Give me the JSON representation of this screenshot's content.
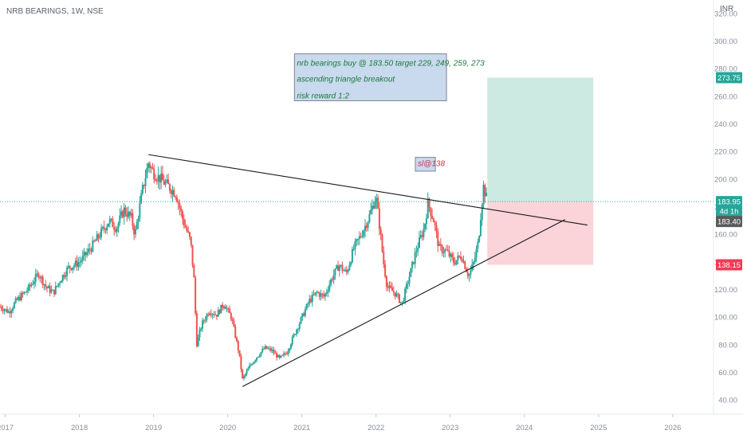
{
  "header": {
    "title": "NRB BEARINGS, 1W, NSE",
    "currency": "INR"
  },
  "colors": {
    "up": "#26a69a",
    "down": "#ef5350",
    "target_zone": "#cdeae2",
    "stop_zone": "#fad4d8",
    "last_price_line": "#26a69a",
    "trendline": "#1a1a1a",
    "note_bg": "#c9d9ee",
    "note_border": "#7b8594",
    "tag_target": "#26a69a",
    "tag_price": "#26a69a",
    "tag_entry": "#5a5a5a",
    "tag_stop": "#ef3b55"
  },
  "notes": {
    "line1": "nrb bearings buy @ 183.50 target 229, 249, 259, 273",
    "line2": "ascending triangle breakout",
    "line3": "risk reward 1:2",
    "stop": "sl@138"
  },
  "price_tags": {
    "target": "273.75",
    "last": "183.95",
    "countdown": "4d 1h",
    "entry": "183.40",
    "stop": "138.15"
  },
  "chart_data": {
    "type": "line",
    "title": "NRB BEARINGS, 1W, NSE",
    "xlabel": "",
    "ylabel": "INR",
    "ylim": [
      30,
      330
    ],
    "xlim": [
      2016.93,
      2026.55
    ],
    "y_ticks": [
      "40.00",
      "60.00",
      "80.00",
      "100.00",
      "120.00",
      "140.00",
      "160.00",
      "180.00",
      "200.00",
      "220.00",
      "240.00",
      "260.00",
      "280.00",
      "300.00",
      "320.00"
    ],
    "x_ticks": [
      {
        "label": "2017",
        "x": 2017.0
      },
      {
        "label": "2018",
        "x": 2018.0
      },
      {
        "label": "2019",
        "x": 2019.0
      },
      {
        "label": "2020",
        "x": 2020.0
      },
      {
        "label": "2021",
        "x": 2021.0
      },
      {
        "label": "2022",
        "x": 2022.0
      },
      {
        "label": "2023",
        "x": 2023.0
      },
      {
        "label": "2024",
        "x": 2024.0
      },
      {
        "label": "2025",
        "x": 2025.0
      },
      {
        "label": "2026",
        "x": 2026.0
      }
    ],
    "price_path": [
      [
        2016.93,
        108
      ],
      [
        2017.05,
        104
      ],
      [
        2017.15,
        112
      ],
      [
        2017.3,
        120
      ],
      [
        2017.45,
        132
      ],
      [
        2017.55,
        122
      ],
      [
        2017.65,
        118
      ],
      [
        2017.75,
        128
      ],
      [
        2017.85,
        136
      ],
      [
        2018.0,
        140
      ],
      [
        2018.15,
        150
      ],
      [
        2018.3,
        162
      ],
      [
        2018.4,
        170
      ],
      [
        2018.5,
        165
      ],
      [
        2018.6,
        178
      ],
      [
        2018.7,
        172
      ],
      [
        2018.75,
        160
      ],
      [
        2018.85,
        192
      ],
      [
        2018.93,
        212
      ],
      [
        2019.0,
        205
      ],
      [
        2019.1,
        200
      ],
      [
        2019.2,
        195
      ],
      [
        2019.3,
        190
      ],
      [
        2019.4,
        170
      ],
      [
        2019.5,
        155
      ],
      [
        2019.55,
        125
      ],
      [
        2019.58,
        80
      ],
      [
        2019.65,
        95
      ],
      [
        2019.75,
        105
      ],
      [
        2019.85,
        102
      ],
      [
        2019.95,
        110
      ],
      [
        2020.05,
        100
      ],
      [
        2020.15,
        75
      ],
      [
        2020.2,
        55
      ],
      [
        2020.3,
        65
      ],
      [
        2020.4,
        72
      ],
      [
        2020.5,
        78
      ],
      [
        2020.6,
        76
      ],
      [
        2020.7,
        70
      ],
      [
        2020.8,
        75
      ],
      [
        2020.9,
        88
      ],
      [
        2021.0,
        100
      ],
      [
        2021.1,
        112
      ],
      [
        2021.2,
        118
      ],
      [
        2021.3,
        115
      ],
      [
        2021.4,
        128
      ],
      [
        2021.5,
        138
      ],
      [
        2021.6,
        132
      ],
      [
        2021.7,
        150
      ],
      [
        2021.8,
        160
      ],
      [
        2021.9,
        172
      ],
      [
        2022.0,
        188
      ],
      [
        2022.05,
        165
      ],
      [
        2022.1,
        140
      ],
      [
        2022.15,
        122
      ],
      [
        2022.25,
        118
      ],
      [
        2022.35,
        110
      ],
      [
        2022.45,
        130
      ],
      [
        2022.55,
        150
      ],
      [
        2022.65,
        165
      ],
      [
        2022.7,
        183
      ],
      [
        2022.78,
        170
      ],
      [
        2022.85,
        150
      ],
      [
        2022.95,
        148
      ],
      [
        2023.05,
        140
      ],
      [
        2023.15,
        145
      ],
      [
        2023.25,
        130
      ],
      [
        2023.32,
        140
      ],
      [
        2023.38,
        155
      ],
      [
        2023.42,
        180
      ],
      [
        2023.45,
        195
      ],
      [
        2023.5,
        184
      ]
    ],
    "trendlines": [
      {
        "name": "resistance",
        "points": [
          [
            2018.93,
            218
          ],
          [
            2024.85,
            167
          ]
        ]
      },
      {
        "name": "support",
        "points": [
          [
            2020.2,
            50
          ],
          [
            2024.55,
            171
          ]
        ]
      }
    ],
    "zones": [
      {
        "name": "target",
        "x": [
          2023.5,
          2024.93
        ],
        "y": [
          183.95,
          273.75
        ]
      },
      {
        "name": "stop",
        "x": [
          2023.5,
          2024.93
        ],
        "y": [
          138.15,
          183.95
        ]
      }
    ],
    "last_price": 183.95,
    "entry_price": 183.4,
    "target_price": 273.75,
    "stop_price": 138.15,
    "note_anchor": {
      "x": [
        2020.9,
        2022.95
      ],
      "y": [
        257,
        291
      ]
    },
    "stop_note_anchor": {
      "x": [
        2022.53,
        2022.8
      ],
      "y": [
        206,
        216
      ]
    }
  }
}
